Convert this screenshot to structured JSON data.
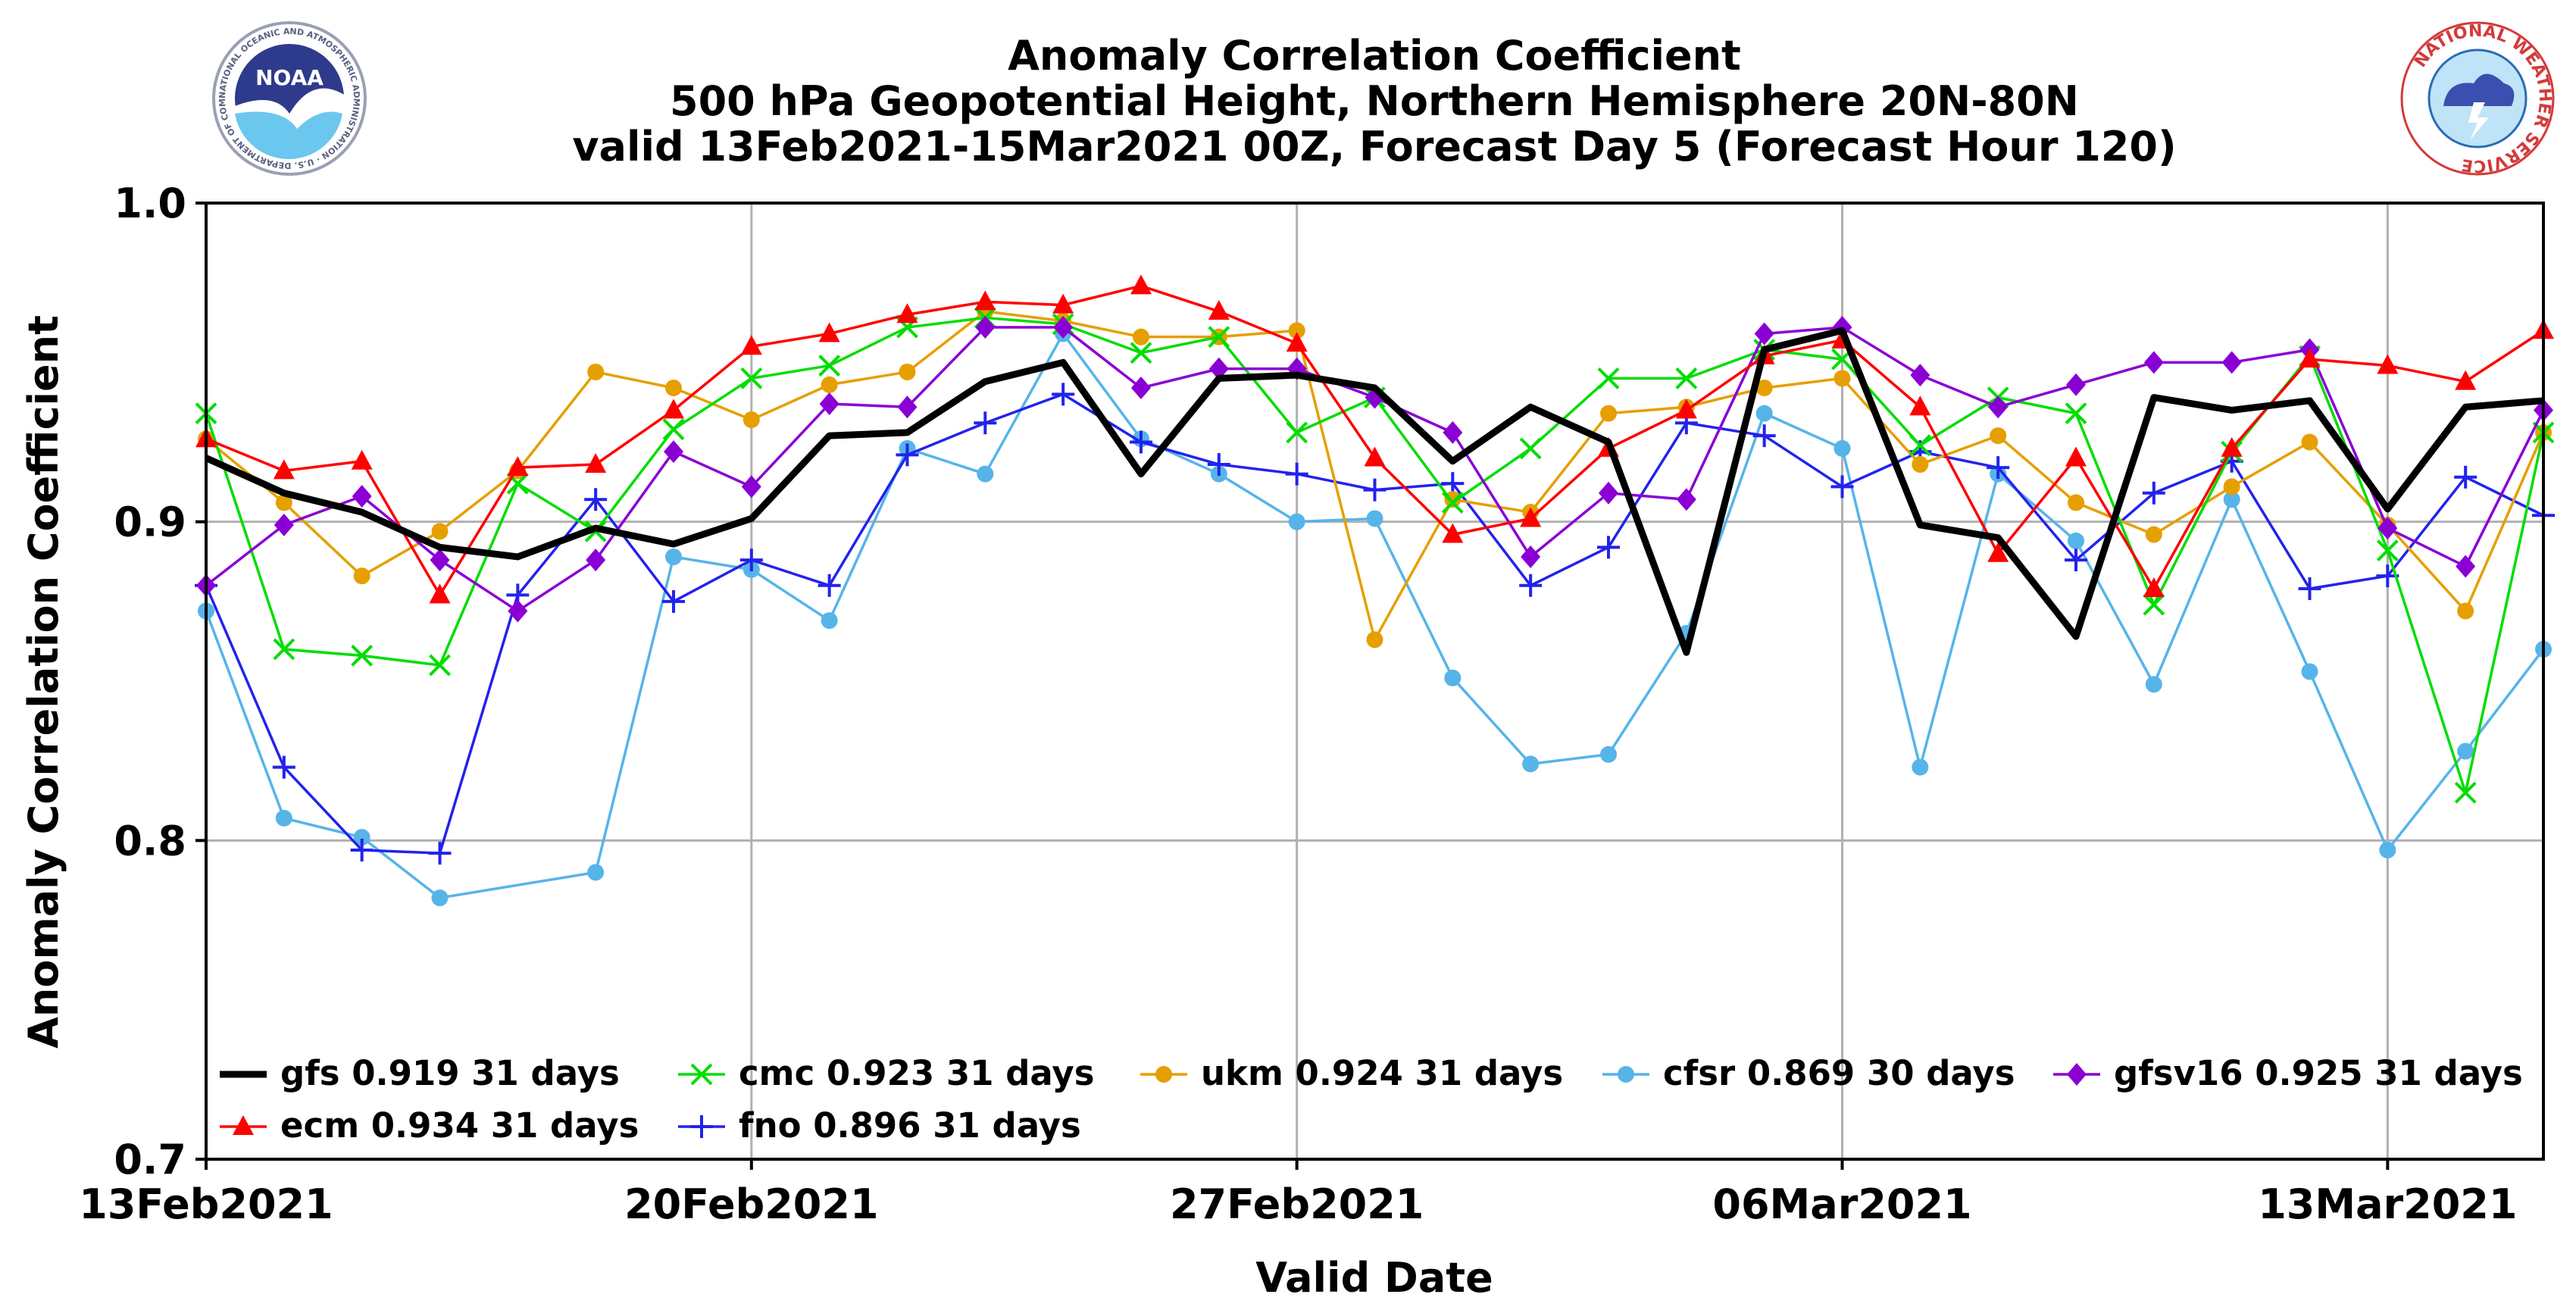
{
  "chart_data": {
    "type": "line",
    "title": [
      "Anomaly Correlation Coefficient",
      "500 hPa Geopotential Height, Northern Hemisphere 20N-80N",
      "valid 13Feb2021-15Mar2021 00Z, Forecast Day 5 (Forecast Hour 120)"
    ],
    "xlabel": "Valid Date",
    "ylabel": "Anomaly Correlation Coefficient",
    "ylim": [
      0.7,
      1.0
    ],
    "xlim": [
      0,
      30
    ],
    "y_ticks": [
      {
        "value": 1.0,
        "label": "1.0"
      },
      {
        "value": 0.9,
        "label": "0.9"
      },
      {
        "value": 0.8,
        "label": "0.8"
      },
      {
        "value": 0.7,
        "label": "0.7"
      }
    ],
    "x_ticks": [
      {
        "day": 0,
        "label": "13Feb2021"
      },
      {
        "day": 7,
        "label": "20Feb2021"
      },
      {
        "day": 14,
        "label": "27Feb2021"
      },
      {
        "day": 21,
        "label": "06Mar2021"
      },
      {
        "day": 28,
        "label": "13Mar2021"
      }
    ],
    "grid": true,
    "legend_position": "bottom-left",
    "series": [
      {
        "name": "gfs",
        "label": "gfs 0.919 31 days",
        "color": "#000000",
        "marker": "none",
        "values": [
          0.92,
          0.909,
          0.903,
          0.892,
          0.889,
          0.898,
          0.893,
          0.901,
          0.927,
          0.928,
          0.944,
          0.95,
          0.915,
          0.945,
          0.946,
          0.942,
          0.919,
          0.936,
          0.925,
          0.859,
          0.954,
          0.96,
          0.899,
          0.895,
          0.864,
          0.939,
          0.935,
          0.938,
          0.904,
          0.936,
          0.938
        ]
      },
      {
        "name": "cmc",
        "label": "cmc 0.923 31 days",
        "color": "#00dd00",
        "marker": "x",
        "values": [
          0.934,
          0.86,
          0.858,
          0.855,
          0.912,
          0.897,
          0.929,
          0.945,
          0.949,
          0.961,
          0.964,
          0.962,
          0.953,
          0.958,
          0.928,
          0.939,
          0.906,
          0.923,
          0.945,
          0.945,
          0.954,
          0.951,
          0.924,
          0.939,
          0.934,
          0.874,
          0.922,
          0.952,
          0.891,
          0.815,
          0.928
        ]
      },
      {
        "name": "ukm",
        "label": "ukm 0.924 31 days",
        "color": "#e69f00",
        "marker": "circle",
        "values": [
          0.926,
          0.906,
          0.883,
          0.897,
          0.916,
          0.947,
          0.942,
          0.932,
          0.943,
          0.947,
          0.966,
          0.963,
          0.958,
          0.958,
          0.96,
          0.863,
          0.907,
          0.903,
          0.934,
          0.936,
          0.942,
          0.945,
          0.918,
          0.927,
          0.906,
          0.896,
          0.911,
          0.925,
          0.899,
          0.872,
          0.928
        ]
      },
      {
        "name": "cfsr",
        "label": "cfsr 0.869 30 days",
        "color": "#56b4e9",
        "marker": "circle",
        "values": [
          0.872,
          0.807,
          0.801,
          0.782,
          null,
          0.79,
          0.889,
          0.885,
          0.869,
          0.923,
          0.915,
          0.959,
          0.926,
          0.915,
          0.9,
          0.901,
          0.851,
          0.824,
          0.827,
          0.865,
          0.934,
          0.923,
          0.823,
          0.915,
          0.894,
          0.849,
          0.907,
          0.853,
          0.797,
          0.828,
          0.86
        ]
      },
      {
        "name": "gfsv16",
        "label": "gfsv16 0.925 31 days",
        "color": "#8a00d4",
        "marker": "diamond",
        "values": [
          0.88,
          0.899,
          0.908,
          0.888,
          0.872,
          0.888,
          0.922,
          0.911,
          0.937,
          0.936,
          0.961,
          0.961,
          0.942,
          0.948,
          0.948,
          0.939,
          0.928,
          0.889,
          0.909,
          0.907,
          0.959,
          0.961,
          0.946,
          0.936,
          0.943,
          0.95,
          0.95,
          0.954,
          0.898,
          0.886,
          0.935
        ]
      },
      {
        "name": "ecm",
        "label": "ecm 0.934 31 days",
        "color": "#ff0000",
        "marker": "triangle",
        "values": [
          0.926,
          0.916,
          0.919,
          0.877,
          0.917,
          0.918,
          0.935,
          0.955,
          0.959,
          0.965,
          0.969,
          0.968,
          0.974,
          0.966,
          0.956,
          0.92,
          0.896,
          0.901,
          0.923,
          0.935,
          0.952,
          0.957,
          0.936,
          0.89,
          0.92,
          0.879,
          0.923,
          0.951,
          0.949,
          0.944,
          0.96
        ]
      },
      {
        "name": "fno",
        "label": "fno 0.896 31 days",
        "color": "#2222ee",
        "marker": "plus",
        "values": [
          0.88,
          0.823,
          0.797,
          0.796,
          0.877,
          0.907,
          0.875,
          0.888,
          0.88,
          0.921,
          0.931,
          0.94,
          0.925,
          0.918,
          0.915,
          0.91,
          0.912,
          0.88,
          0.892,
          0.931,
          0.927,
          0.911,
          0.922,
          0.917,
          0.888,
          0.909,
          0.919,
          0.879,
          0.883,
          0.914,
          0.902
        ]
      }
    ]
  },
  "logos": {
    "noaa": {
      "name": "NOAA",
      "ring_text": "NATIONAL OCEANIC AND ATMOSPHERIC ADMINISTRATION · U.S. DEPARTMENT OF COMMERCE"
    },
    "nws": {
      "ring_text": "NATIONAL WEATHER SERVICE"
    }
  }
}
